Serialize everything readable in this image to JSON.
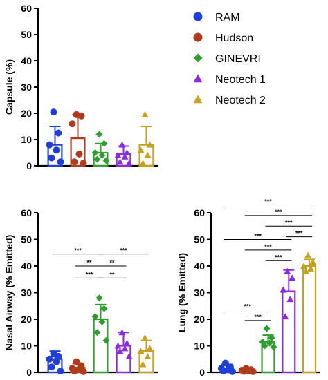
{
  "colors": {
    "RAM": "#1f3fd6",
    "Hudson": "#b03a1e",
    "GINEVRI": "#2e9e2e",
    "Neotech 1": "#8a2be2",
    "Neotech 2": "#c8a020"
  },
  "legend": {
    "items": [
      {
        "name": "RAM",
        "marker": "circle"
      },
      {
        "name": "Hudson",
        "marker": "circle"
      },
      {
        "name": "GINEVRI",
        "marker": "diamond"
      },
      {
        "name": "Neotech 1",
        "marker": "triangle"
      },
      {
        "name": "Neotech 2",
        "marker": "triangle"
      }
    ]
  },
  "chart_data": [
    {
      "type": "bar",
      "ylabel": "Capsule (%)",
      "ylim": [
        0,
        60
      ],
      "yticks": [
        0,
        10,
        20,
        30,
        40,
        50,
        60
      ],
      "categories": [
        "RAM",
        "Hudson",
        "GINEVRI",
        "Neotech 1",
        "Neotech 2"
      ],
      "values": [
        8,
        10.5,
        5,
        4.5,
        8
      ],
      "errors": [
        7,
        9,
        3.5,
        3,
        7
      ],
      "points": [
        [
          20.5,
          12.5,
          8,
          6,
          3,
          1.5
        ],
        [
          19.5,
          19,
          16,
          4.5,
          1.5,
          1
        ],
        [
          12,
          8.5,
          5,
          4,
          2.5,
          2
        ],
        [
          8,
          5,
          4,
          3.5,
          1.5,
          1
        ],
        [
          19.5,
          8,
          6,
          4,
          1
        ]
      ],
      "significance": []
    },
    {
      "type": "bar",
      "ylabel": "Nasal Airway (% Emitted)",
      "ylim": [
        0,
        60
      ],
      "yticks": [
        0,
        10,
        20,
        30,
        40,
        50,
        60
      ],
      "categories": [
        "RAM",
        "Hudson",
        "GINEVRI",
        "Neotech 1",
        "Neotech 2"
      ],
      "values": [
        5,
        1.8,
        20,
        10,
        8
      ],
      "errors": [
        3,
        1.5,
        5.5,
        5,
        4
      ],
      "points": [
        [
          7,
          6,
          5,
          4,
          2,
          0.5
        ],
        [
          4,
          2.5,
          1.5,
          1,
          0.5,
          0.3
        ],
        [
          28,
          24,
          21,
          19,
          15,
          12
        ],
        [
          15,
          11,
          10,
          9,
          8,
          6
        ],
        [
          13,
          9,
          8,
          6,
          3
        ]
      ],
      "significance": [
        {
          "from": 0,
          "to": 2,
          "label": "***",
          "y": 44.5
        },
        {
          "from": 2,
          "to": 4,
          "label": "***",
          "y": 44.5
        },
        {
          "from": 1,
          "to": 2,
          "label": "**",
          "y": 40
        },
        {
          "from": 2,
          "to": 3,
          "label": "**",
          "y": 40
        },
        {
          "from": 1,
          "to": 2,
          "label": "***",
          "y": 35.5
        },
        {
          "from": 2,
          "to": 3,
          "label": "**",
          "y": 35.5
        }
      ]
    },
    {
      "type": "bar",
      "ylabel": "Lung (% Emitted)",
      "ylim": [
        0,
        60
      ],
      "yticks": [
        0,
        10,
        20,
        30,
        40,
        50,
        60
      ],
      "categories": [
        "RAM",
        "Hudson",
        "GINEVRI",
        "Neotech 1",
        "Neotech 2"
      ],
      "values": [
        1.5,
        0.8,
        11.5,
        30.5,
        40
      ],
      "errors": [
        1.5,
        0.4,
        2.5,
        8,
        2.5
      ],
      "points": [
        [
          3.5,
          2,
          1.5,
          1,
          0.5,
          0.3
        ],
        [
          1.5,
          1,
          0.8,
          0.6,
          0.4,
          0.3
        ],
        [
          16.5,
          13,
          11.5,
          11,
          10,
          9.5
        ],
        [
          38,
          35.5,
          31,
          27.5,
          21
        ],
        [
          44,
          41.5,
          40,
          39,
          38
        ]
      ],
      "significance": [
        {
          "from": 0,
          "to": 4,
          "label": "***",
          "y": 63
        },
        {
          "from": 1,
          "to": 4,
          "label": "***",
          "y": 59
        },
        {
          "from": 2,
          "to": 4,
          "label": "***",
          "y": 55
        },
        {
          "from": 3,
          "to": 4,
          "label": "***",
          "y": 51
        },
        {
          "from": 0,
          "to": 3,
          "label": "***",
          "y": 50
        },
        {
          "from": 1,
          "to": 3,
          "label": "***",
          "y": 46
        },
        {
          "from": 2,
          "to": 3,
          "label": "***",
          "y": 42
        },
        {
          "from": 0,
          "to": 2,
          "label": "***",
          "y": 23.5
        },
        {
          "from": 1,
          "to": 2,
          "label": "***",
          "y": 19.5
        }
      ]
    }
  ]
}
